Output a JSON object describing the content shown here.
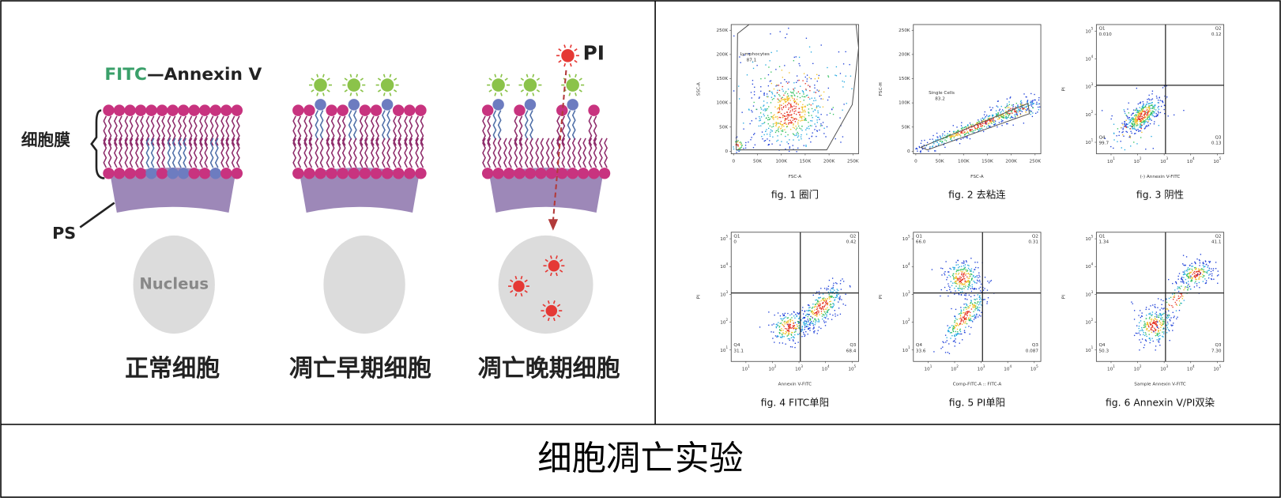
{
  "caption": "细胞凋亡实验",
  "diagram": {
    "fitc_label": "FITC",
    "annexin_label": "—Annexin V",
    "membrane_label": "细胞膜",
    "ps_label": "PS",
    "nucleus_label": "Nucleus",
    "pi_label": "PI",
    "cells": [
      "正常细胞",
      "凋亡早期细胞",
      "凋亡晚期细胞"
    ]
  },
  "plots": [
    {
      "caption": "fig. 1 圈门",
      "xlabel": "FSC-A",
      "ylabel": "SSC-A",
      "xticks": [
        "0",
        "50K",
        "100K",
        "150K",
        "200K",
        "250K"
      ],
      "yticks": [
        "0",
        "50K",
        "100K",
        "150K",
        "200K",
        "250K"
      ],
      "gate": {
        "name": "Lymphocytes",
        "value": "87.1"
      }
    },
    {
      "caption": "fig. 2 去粘连",
      "xlabel": "FSC-A",
      "ylabel": "FSC-H",
      "xticks": [
        "0",
        "50K",
        "100K",
        "150K",
        "200K",
        "250K"
      ],
      "yticks": [
        "0",
        "50K",
        "100K",
        "150K",
        "200K",
        "250K"
      ],
      "gate": {
        "name": "Single Cells",
        "value": "83.2"
      }
    },
    {
      "caption": "fig. 3 阴性",
      "xlabel": "(-) Annexin V-FITC",
      "ylabel": "PI",
      "tick_base": "10",
      "tick_exps": [
        "1",
        "2",
        "3",
        "4",
        "5"
      ],
      "quadrants": [
        {
          "name": "Q1",
          "value": "0.010"
        },
        {
          "name": "Q2",
          "value": "0.12"
        },
        {
          "name": "Q3",
          "value": "0.13"
        },
        {
          "name": "Q4",
          "value": "99.7"
        }
      ]
    },
    {
      "caption": "fig. 4 FITC单阳",
      "xlabel": "Annexin V-FITC",
      "ylabel": "PI",
      "tick_base": "10",
      "tick_exps": [
        "1",
        "2",
        "3",
        "4",
        "5"
      ],
      "quadrants": [
        {
          "name": "Q1",
          "value": "0"
        },
        {
          "name": "Q2",
          "value": "0.42"
        },
        {
          "name": "Q3",
          "value": "68.4"
        },
        {
          "name": "Q4",
          "value": "31.1"
        }
      ]
    },
    {
      "caption": "fig. 5 PI单阳",
      "xlabel": "Comp-FITC-A :: FITC-A",
      "ylabel": "PI",
      "tick_base": "10",
      "tick_exps": [
        "1",
        "2",
        "3",
        "4",
        "5"
      ],
      "quadrants": [
        {
          "name": "Q1",
          "value": "66.0"
        },
        {
          "name": "Q2",
          "value": "0.31"
        },
        {
          "name": "Q3",
          "value": "0.087"
        },
        {
          "name": "Q4",
          "value": "33.6"
        }
      ]
    },
    {
      "caption": "fig. 6 Annexin V/PI双染",
      "xlabel": "Sample Annexin V-FITC",
      "ylabel": "PI",
      "tick_base": "10",
      "tick_exps": [
        "1",
        "2",
        "3",
        "4",
        "5"
      ],
      "quadrants": [
        {
          "name": "Q1",
          "value": "1.34"
        },
        {
          "name": "Q2",
          "value": "41.1"
        },
        {
          "name": "Q3",
          "value": "7.30"
        },
        {
          "name": "Q4",
          "value": "50.3"
        }
      ]
    }
  ]
}
